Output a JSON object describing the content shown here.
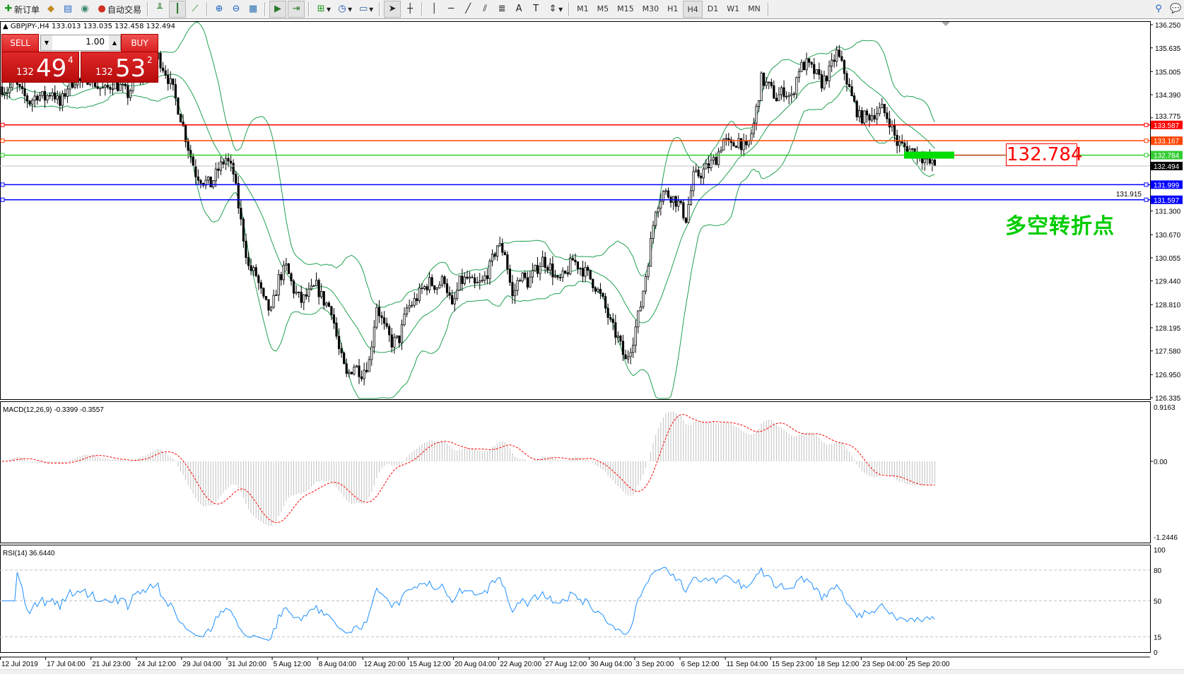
{
  "toolbar": {
    "new_order": "新订单",
    "auto_trading": "自动交易",
    "timeframes": [
      "M1",
      "M5",
      "M15",
      "M30",
      "H1",
      "H4",
      "D1",
      "W1",
      "MN"
    ],
    "active_timeframe": "H4",
    "icons": [
      "new-order-icon",
      "market-watch-icon",
      "navigator-icon",
      "signals-icon",
      "auto-trading-icon",
      "bar-chart-icon",
      "candlestick-icon",
      "line-chart-icon",
      "zoom-in-icon",
      "zoom-out-icon",
      "tile-windows-icon",
      "autoscroll-icon",
      "chart-shift-icon",
      "indicators-icon",
      "periods-icon",
      "templates-icon",
      "cursor-icon",
      "crosshair-icon",
      "vertical-line-icon",
      "horizontal-line-icon",
      "trendline-icon",
      "equidistant-channel-icon",
      "fibonacci-icon",
      "text-icon",
      "text-label-icon",
      "arrows-icon",
      "search-icon",
      "chat-icon"
    ]
  },
  "chart_header": "GBPJPY-,H4  133.013 133.035 132.458 132.494",
  "trade_panel": {
    "sell_label": "SELL",
    "buy_label": "BUY",
    "lot": "1.00",
    "bid_prefix": "132",
    "bid_big": "49",
    "bid_sup": "4",
    "ask_prefix": "132",
    "ask_big": "53",
    "ask_sup": "2"
  },
  "annotations": {
    "level_box": "132.784",
    "pivot_label": "多空转折点"
  },
  "chart_data": {
    "type": "candlestick",
    "symbol": "GBPJPY-",
    "timeframe": "H4",
    "last_ohlc": {
      "open": 133.013,
      "high": 133.035,
      "low": 132.458,
      "close": 132.494
    },
    "price_range": [
      126.335,
      136.25
    ],
    "price_ticks": [
      "136.250",
      "135.635",
      "135.005",
      "134.390",
      "133.775",
      "131.915",
      "131.300",
      "130.670",
      "130.055",
      "129.440",
      "128.810",
      "128.195",
      "127.580",
      "126.950",
      "126.335"
    ],
    "levels": [
      {
        "price": 133.587,
        "label": "133.587",
        "color": "#ff0000"
      },
      {
        "price": 133.167,
        "label": "133.167",
        "color": "#ff4500"
      },
      {
        "price": 132.784,
        "label": "132.784",
        "color": "#32cd32"
      },
      {
        "price": 132.494,
        "label": "132.494",
        "color": "#000000",
        "kind": "bid"
      },
      {
        "price": 131.999,
        "label": "131.999",
        "color": "#0000ff"
      },
      {
        "price": 131.597,
        "label": "131.597",
        "color": "#0000ff"
      }
    ],
    "bollinger_color": "#20a050",
    "close_path": [
      134.6,
      134.5,
      134.7,
      134.4,
      134.2,
      134.4,
      134.3,
      134.5,
      134.1,
      134.6,
      134.8,
      134.7,
      134.9,
      134.6,
      134.5,
      134.7,
      134.6,
      134.4,
      134.8,
      135.0,
      135.2,
      135.4,
      135.0,
      134.5,
      133.8,
      133.0,
      132.3,
      132.1,
      132.0,
      132.4,
      132.7,
      132.3,
      131.0,
      129.8,
      129.6,
      128.9,
      128.6,
      129.5,
      129.8,
      129.2,
      128.9,
      129.1,
      129.3,
      128.9,
      128.7,
      127.6,
      126.9,
      127.2,
      127.0,
      127.3,
      128.8,
      128.2,
      127.8,
      127.9,
      128.7,
      128.9,
      129.2,
      129.4,
      129.3,
      129.5,
      128.7,
      129.4,
      129.5,
      129.3,
      129.4,
      129.8,
      130.4,
      130.2,
      129.0,
      129.6,
      129.4,
      129.7,
      130.0,
      129.8,
      129.4,
      129.6,
      130.0,
      129.8,
      129.6,
      129.3,
      128.9,
      128.3,
      127.9,
      127.3,
      127.9,
      128.8,
      130.0,
      131.4,
      131.8,
      131.7,
      131.5,
      131.1,
      132.2,
      132.3,
      132.5,
      132.7,
      133.2,
      133.0,
      133.2,
      132.9,
      133.6,
      134.8,
      134.6,
      134.3,
      134.5,
      134.3,
      135.1,
      135.2,
      135.0,
      134.7,
      135.0,
      135.5,
      135.0,
      134.3,
      133.8,
      133.8,
      133.9,
      134.0,
      133.7,
      133.1,
      133.0,
      132.9,
      132.8,
      132.6,
      132.494
    ],
    "time_labels": [
      "12 Jul 2019",
      "17 Jul 04:00",
      "21 Jul 23:00",
      "24 Jul 12:00",
      "29 Jul 04:00",
      "31 Jul 20:00",
      "5 Aug 12:00",
      "8 Aug 04:00",
      "12 Aug 20:00",
      "15 Aug 12:00",
      "20 Aug 04:00",
      "22 Aug 20:00",
      "27 Aug 12:00",
      "30 Aug 04:00",
      "3 Sep 20:00",
      "6 Sep 12:00",
      "11 Sep 04:00",
      "15 Sep 23:00",
      "18 Sep 12:00",
      "23 Sep 04:00",
      "25 Sep 20:00"
    ],
    "macd": {
      "label": "MACD(12,26,9) -0.3399 -0.3557",
      "ticks": [
        "0.9163",
        "0.00",
        "-1.2446"
      ],
      "range": [
        -1.2446,
        0.9163
      ],
      "histogram_color": "#c0c0c0",
      "signal_color": "#ff0000"
    },
    "rsi": {
      "label": "RSI(14) 36.6440",
      "ticks": [
        "100",
        "80",
        "50",
        "15",
        "0"
      ],
      "levels": [
        80,
        50,
        15
      ],
      "color": "#1e90ff"
    }
  }
}
